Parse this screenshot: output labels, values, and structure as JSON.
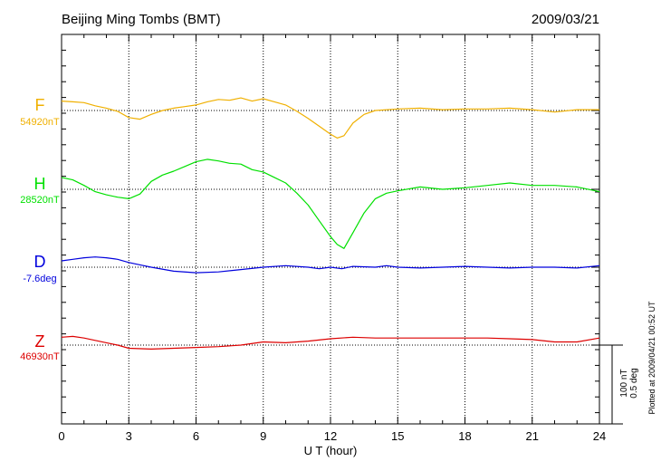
{
  "header": {
    "station": "Beijing Ming Tombs (BMT)",
    "date": "2009/03/21"
  },
  "plotted_note": "Plotted at 2009/04/21 00:52 UT",
  "scale_labels": [
    "100 nT",
    "0.5 deg"
  ],
  "chart_data": {
    "type": "line",
    "xlabel": "U T (hour)",
    "xlim": [
      0,
      24
    ],
    "x_ticks": [
      "0",
      "3",
      "6",
      "9",
      "12",
      "15",
      "18",
      "21",
      "24"
    ],
    "units_per_division": "100 nT / 0.5 deg",
    "grid": true,
    "series": [
      {
        "name": "F",
        "baseline_label": "54920nT",
        "color": "#f0b000",
        "x": [
          0,
          0.5,
          1,
          1.5,
          2,
          2.5,
          3,
          3.5,
          4,
          4.5,
          5,
          5.5,
          6,
          6.5,
          7,
          7.5,
          8,
          8.5,
          9,
          9.5,
          10,
          10.5,
          11,
          11.5,
          12,
          12.3,
          12.6,
          13,
          13.5,
          14,
          15,
          16,
          17,
          18,
          19,
          20,
          21,
          22,
          23,
          24
        ],
        "values": [
          12,
          11,
          10,
          6,
          3,
          -1,
          -9,
          -11,
          -5,
          0,
          3,
          5,
          7,
          11,
          14,
          13,
          16,
          12,
          15,
          11,
          7,
          -1,
          -10,
          -20,
          -30,
          -35,
          -32,
          -16,
          -5,
          0,
          2,
          3,
          1,
          2,
          2,
          3,
          1,
          -2,
          1,
          1
        ]
      },
      {
        "name": "H",
        "baseline_label": "28520nT",
        "color": "#00e000",
        "x": [
          0,
          0.5,
          1,
          1.5,
          2,
          2.5,
          3,
          3.5,
          4,
          4.5,
          5,
          5.5,
          6,
          6.5,
          7,
          7.5,
          8,
          8.5,
          9,
          9.5,
          10,
          10.5,
          11,
          11.5,
          12,
          12.3,
          12.6,
          13,
          13.5,
          14,
          14.5,
          15,
          16,
          17,
          18,
          19,
          20,
          21,
          22,
          23,
          24
        ],
        "values": [
          15,
          12,
          5,
          -3,
          -7,
          -10,
          -12,
          -6,
          10,
          18,
          23,
          29,
          35,
          38,
          36,
          33,
          32,
          25,
          22,
          15,
          8,
          -5,
          -20,
          -40,
          -60,
          -70,
          -75,
          -55,
          -30,
          -12,
          -5,
          -2,
          3,
          0,
          2,
          5,
          8,
          5,
          5,
          3,
          -3
        ]
      },
      {
        "name": "D",
        "baseline_label": "-7.6deg",
        "color": "#0000dd",
        "x": [
          0,
          0.5,
          1,
          1.5,
          2,
          2.5,
          3,
          3.5,
          4,
          5,
          6,
          7,
          8,
          9,
          10,
          11,
          11.5,
          12,
          12.5,
          13,
          14,
          14.5,
          15,
          16,
          17,
          18,
          19,
          20,
          21,
          22,
          23,
          24
        ],
        "values": [
          8,
          10,
          12,
          13,
          12,
          10,
          6,
          3,
          0,
          -5,
          -7,
          -6,
          -3,
          0,
          2,
          0,
          -2,
          0,
          -2,
          1,
          0,
          2,
          0,
          -1,
          0,
          1,
          0,
          -1,
          0,
          0,
          -1,
          2
        ]
      },
      {
        "name": "Z",
        "baseline_label": "46930nT",
        "color": "#dd0000",
        "x": [
          0,
          0.5,
          1,
          1.5,
          2,
          2.5,
          3,
          4,
          5,
          6,
          7,
          8,
          9,
          10,
          11,
          12,
          13,
          14,
          15,
          16,
          17,
          18,
          19,
          20,
          21,
          22,
          23,
          24
        ],
        "values": [
          10,
          11,
          9,
          6,
          3,
          0,
          -4,
          -5,
          -4,
          -3,
          -2,
          0,
          4,
          3,
          5,
          8,
          10,
          9,
          9,
          9,
          9,
          9,
          9,
          8,
          7,
          4,
          4,
          9
        ]
      }
    ]
  }
}
